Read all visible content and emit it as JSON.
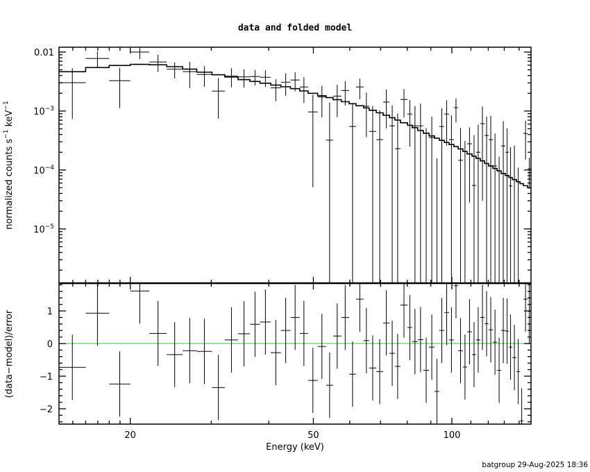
{
  "chart_data": {
    "type": "scatter",
    "title": "data and folded model",
    "xlabel": "Energy (keV)",
    "xscale": "log",
    "xlim": [
      14.0,
      148.6
    ],
    "xtick_labels": [
      {
        "value": 20,
        "label": "20"
      },
      {
        "value": 50,
        "label": "50"
      },
      {
        "value": 100,
        "label": "100"
      }
    ],
    "footer": "batgroup 29-Aug-2025 18:36",
    "colors": {
      "data": "#000000",
      "model": "#000000",
      "zero_line": "#33cc33",
      "axes": "#000000"
    },
    "top_panel": {
      "ylabel_parts": [
        "normalized counts s",
        "−1",
        " keV",
        "−1"
      ],
      "yscale": "log",
      "ylim": [
        1.2e-06,
        0.0121
      ],
      "ytick_labels": [
        {
          "value": 0.01,
          "base": "0.01",
          "exp": ""
        },
        {
          "value": 0.001,
          "base": "10",
          "exp": "−3"
        },
        {
          "value": 0.0001,
          "base": "10",
          "exp": "−4"
        },
        {
          "value": 1e-05,
          "base": "10",
          "exp": "−5"
        }
      ]
    },
    "bottom_panel": {
      "ylabel": "(data−model)/error",
      "ylim": [
        -2.47,
        1.85
      ],
      "ytick_labels": [
        {
          "value": 1,
          "label": "1"
        },
        {
          "value": 0,
          "label": "0"
        },
        {
          "value": -1,
          "label": "−1"
        },
        {
          "value": -2,
          "label": "−2"
        }
      ],
      "zero_line": 0
    },
    "energy_edges": [
      14.0,
      16.0,
      18.0,
      20.0,
      22.0,
      24.0,
      26.0,
      27.9,
      30.1,
      32.1,
      34.3,
      36.4,
      38.3,
      40.4,
      42.5,
      44.6,
      46.7,
      48.7,
      51.1,
      53.3,
      55.2,
      57.5,
      59.8,
      61.9,
      64.3,
      66.1,
      68.5,
      70.9,
      73.2,
      75.2,
      77.3,
      80.1,
      82.0,
      84.3,
      86.7,
      89.2,
      91.7,
      93.9,
      96.3,
      98.6,
      101.0,
      103.2,
      105.7,
      107.9,
      110.6,
      112.9,
      115.3,
      117.8,
      120.2,
      122.8,
      125.4,
      128.0,
      130.7,
      133.0,
      135.3,
      138.2,
      140.6,
      143.1,
      146.1,
      148.6
    ],
    "series": [
      {
        "name": "data",
        "units": "counts s^-1 keV^-1",
        "values": [
          0.00303,
          0.00778,
          0.00327,
          0.01,
          0.00679,
          0.00513,
          0.00465,
          0.00417,
          0.00218,
          0.00392,
          0.0038,
          0.00385,
          0.00374,
          0.00247,
          0.00309,
          0.00336,
          0.00256,
          0.000966,
          0.00173,
          0.00032,
          0.00179,
          0.00223,
          0.000547,
          0.00256,
          0.00121,
          0.000452,
          0.000327,
          0.00142,
          0.000561,
          0.00023,
          0.00157,
          0.000889,
          0.000561,
          0.000561,
          -6e-06,
          0.000354,
          -0.000242,
          0.000547,
          0.000889,
          0.000327,
          0.00114,
          0.000146,
          -6e-05,
          0.000278,
          5.47e-05,
          0.0002,
          0.00061,
          0.000385,
          0.000327,
          0.000117,
          -0.00023,
          0.000256,
          0.0002,
          5.37e-05,
          -7.5e-05,
          -0.00021,
          -0.0003,
          0.000417,
          0.000105
        ],
        "errors": [
          0.0023,
          0.0024,
          0.00215,
          0.00236,
          0.0022,
          0.00156,
          0.0022,
          0.0016,
          0.00144,
          0.0014,
          0.0013,
          0.00114,
          0.00118,
          0.001,
          0.00128,
          0.0012,
          0.00119,
          0.000915,
          0.00095,
          0.00107,
          0.001,
          0.00099,
          0.00083,
          0.00098,
          0.00085,
          0.00077,
          0.0007,
          0.00091,
          0.00069,
          0.00068,
          0.00079,
          0.00064,
          0.00065,
          0.00077,
          0.00052,
          0.00045,
          0.0004,
          0.00057,
          0.00063,
          0.00052,
          0.0005,
          0.00037,
          0.00037,
          0.00025,
          0.000335,
          0.00039,
          0.00058,
          0.00042,
          0.0005,
          0.0003,
          0.000398,
          0.00042,
          0.00031,
          0.00019,
          0.000336,
          0.00032,
          0.00015,
          0.000267,
          5.6e-05
        ]
      },
      {
        "name": "folded model",
        "units": "counts s^-1 keV^-1",
        "values": [
          0.00465,
          0.00547,
          0.00593,
          0.0062,
          0.0061,
          0.00566,
          0.00513,
          0.00456,
          0.00412,
          0.00377,
          0.00341,
          0.00318,
          0.00296,
          0.00275,
          0.00258,
          0.0024,
          0.00219,
          0.002,
          0.00182,
          0.00169,
          0.00156,
          0.00144,
          0.00133,
          0.00123,
          0.00113,
          0.00103,
          0.000933,
          0.000847,
          0.000769,
          0.000703,
          0.000634,
          0.000575,
          0.000522,
          0.000468,
          0.00042,
          0.000378,
          0.000346,
          0.000318,
          0.000293,
          0.00027,
          0.000249,
          0.000227,
          0.000206,
          0.000187,
          0.000171,
          0.000157,
          0.000143,
          0.000129,
          0.000117,
          0.000106,
          9.64e-05,
          8.73e-05,
          8.04e-05,
          7.46e-05,
          6.87e-05,
          6.32e-05,
          5.86e-05,
          5.41e-05,
          4.98e-05
        ]
      },
      {
        "name": "residual",
        "units": "sigma",
        "values": [
          -0.73,
          0.93,
          -1.24,
          1.61,
          0.31,
          -0.34,
          -0.22,
          -0.24,
          -1.35,
          0.11,
          0.3,
          0.59,
          0.66,
          -0.28,
          0.4,
          0.8,
          0.31,
          -1.13,
          -0.09,
          -1.28,
          0.23,
          0.8,
          -0.94,
          1.36,
          0.09,
          -0.75,
          -0.86,
          0.63,
          -0.3,
          -0.7,
          1.18,
          0.49,
          0.06,
          0.12,
          -0.82,
          -0.11,
          -1.47,
          0.4,
          0.95,
          0.11,
          1.77,
          -0.22,
          -0.72,
          0.36,
          -0.34,
          0.11,
          0.8,
          0.61,
          0.42,
          0.04,
          -0.82,
          0.4,
          0.38,
          -0.11,
          -0.43,
          -0.86,
          -2.37,
          1.36,
          0.99
        ],
        "errors": 1
      }
    ]
  }
}
